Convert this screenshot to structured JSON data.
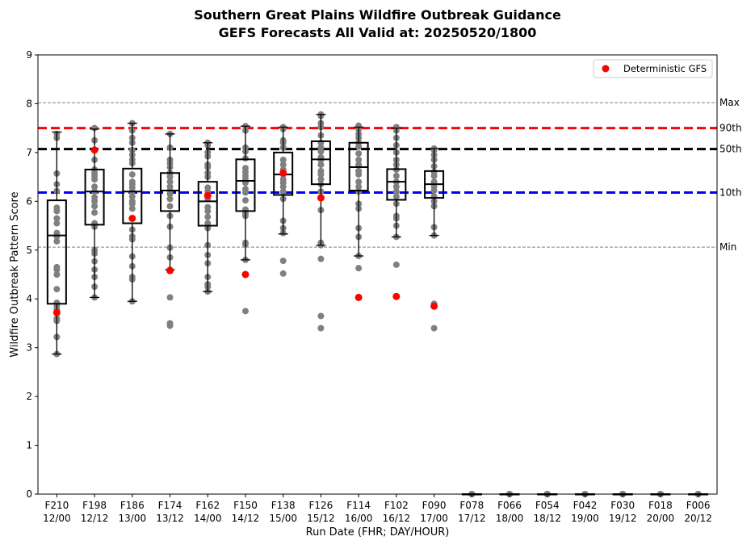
{
  "chart_data": {
    "type": "box",
    "title": "Southern Great Plains Wildfire Outbreak Guidance",
    "subtitle": "GEFS Forecasts All Valid at: 20250520/1800",
    "xlabel": "Run Date (FHR; DAY/HOUR)",
    "ylabel": "Wildfire Outbreak Pattern Score",
    "ylim": [
      0,
      9
    ],
    "yticks": [
      0,
      1,
      2,
      3,
      4,
      5,
      6,
      7,
      8,
      9
    ],
    "grid": false,
    "legend": {
      "position": "top-right",
      "entries": [
        "Deterministic GFS"
      ]
    },
    "categories": [
      {
        "fhr": "F210",
        "date": "12/00"
      },
      {
        "fhr": "F198",
        "date": "12/12"
      },
      {
        "fhr": "F186",
        "date": "13/00"
      },
      {
        "fhr": "F174",
        "date": "13/12"
      },
      {
        "fhr": "F162",
        "date": "14/00"
      },
      {
        "fhr": "F150",
        "date": "14/12"
      },
      {
        "fhr": "F138",
        "date": "15/00"
      },
      {
        "fhr": "F126",
        "date": "15/12"
      },
      {
        "fhr": "F114",
        "date": "16/00"
      },
      {
        "fhr": "F102",
        "date": "16/12"
      },
      {
        "fhr": "F090",
        "date": "17/00"
      },
      {
        "fhr": "F078",
        "date": "17/12"
      },
      {
        "fhr": "F066",
        "date": "18/00"
      },
      {
        "fhr": "F054",
        "date": "18/12"
      },
      {
        "fhr": "F042",
        "date": "19/00"
      },
      {
        "fhr": "F030",
        "date": "19/12"
      },
      {
        "fhr": "F018",
        "date": "20/00"
      },
      {
        "fhr": "F006",
        "date": "20/12"
      }
    ],
    "boxes": [
      {
        "whislo": 2.87,
        "q1": 3.9,
        "med": 5.3,
        "q3": 6.02,
        "whishi": 7.42
      },
      {
        "whislo": 4.03,
        "q1": 5.52,
        "med": 6.2,
        "q3": 6.65,
        "whishi": 7.48
      },
      {
        "whislo": 3.95,
        "q1": 5.55,
        "med": 6.2,
        "q3": 6.67,
        "whishi": 7.6
      },
      {
        "whislo": 4.6,
        "q1": 5.8,
        "med": 6.22,
        "q3": 6.58,
        "whishi": 7.38
      },
      {
        "whislo": 4.15,
        "q1": 5.5,
        "med": 6.0,
        "q3": 6.4,
        "whishi": 7.2
      },
      {
        "whislo": 4.8,
        "q1": 5.8,
        "med": 6.42,
        "q3": 6.86,
        "whishi": 7.54
      },
      {
        "whislo": 5.33,
        "q1": 6.13,
        "med": 6.55,
        "q3": 7.0,
        "whishi": 7.52
      },
      {
        "whislo": 5.1,
        "q1": 6.35,
        "med": 6.86,
        "q3": 7.23,
        "whishi": 7.78
      },
      {
        "whislo": 4.88,
        "q1": 6.22,
        "med": 6.7,
        "q3": 7.2,
        "whishi": 7.52
      },
      {
        "whislo": 5.27,
        "q1": 6.03,
        "med": 6.4,
        "q3": 6.66,
        "whishi": 7.5
      },
      {
        "whislo": 5.3,
        "q1": 6.07,
        "med": 6.35,
        "q3": 6.62,
        "whishi": 7.08
      },
      {
        "whislo": 0,
        "q1": 0,
        "med": 0,
        "q3": 0,
        "whishi": 0
      },
      {
        "whislo": 0,
        "q1": 0,
        "med": 0,
        "q3": 0,
        "whishi": 0
      },
      {
        "whislo": 0,
        "q1": 0,
        "med": 0,
        "q3": 0,
        "whishi": 0
      },
      {
        "whislo": 0,
        "q1": 0,
        "med": 0,
        "q3": 0,
        "whishi": 0
      },
      {
        "whislo": 0,
        "q1": 0,
        "med": 0,
        "q3": 0,
        "whishi": 0
      },
      {
        "whislo": 0,
        "q1": 0,
        "med": 0,
        "q3": 0,
        "whishi": 0
      },
      {
        "whislo": 0,
        "q1": 0,
        "med": 0,
        "q3": 0,
        "whishi": 0
      }
    ],
    "members": [
      [
        7.38,
        7.3,
        6.57,
        6.35,
        6.21,
        5.87,
        5.8,
        5.65,
        5.55,
        5.35,
        5.28,
        5.18,
        4.65,
        4.6,
        4.5,
        4.2,
        3.92,
        3.85,
        3.78,
        3.6,
        3.55,
        3.22,
        2.87
      ],
      [
        7.5,
        7.25,
        7.05,
        6.85,
        6.65,
        6.58,
        6.52,
        6.45,
        6.3,
        6.2,
        6.08,
        6.0,
        5.9,
        5.77,
        5.55,
        5.48,
        5.0,
        4.93,
        4.77,
        4.6,
        4.45,
        4.25,
        4.03
      ],
      [
        7.6,
        7.45,
        7.3,
        7.2,
        7.05,
        6.95,
        6.85,
        6.78,
        6.55,
        6.4,
        6.35,
        6.28,
        6.2,
        6.1,
        6.0,
        5.95,
        5.85,
        5.65,
        5.42,
        5.28,
        5.22,
        4.87,
        4.67,
        4.45,
        4.4,
        3.95
      ],
      [
        7.38,
        7.1,
        6.85,
        6.78,
        6.7,
        6.58,
        6.5,
        6.4,
        6.3,
        6.22,
        6.15,
        6.05,
        5.9,
        5.7,
        5.48,
        5.05,
        4.85,
        4.6,
        4.03,
        3.5,
        3.45
      ],
      [
        7.2,
        7.15,
        7.0,
        6.92,
        6.75,
        6.7,
        6.58,
        6.5,
        6.28,
        6.2,
        6.05,
        5.88,
        5.8,
        5.68,
        5.55,
        5.45,
        5.1,
        4.9,
        4.73,
        4.45,
        4.3,
        4.25,
        4.15
      ],
      [
        7.54,
        7.45,
        7.1,
        7.02,
        6.88,
        6.68,
        6.6,
        6.52,
        6.45,
        6.38,
        6.25,
        6.18,
        6.02,
        5.83,
        5.75,
        5.7,
        5.15,
        5.12,
        4.8,
        3.75
      ],
      [
        7.52,
        7.48,
        7.25,
        7.2,
        7.1,
        6.85,
        6.75,
        6.65,
        6.55,
        6.45,
        6.38,
        6.3,
        6.2,
        6.05,
        5.6,
        5.45,
        5.35,
        4.78,
        4.52
      ],
      [
        7.78,
        7.75,
        7.6,
        7.52,
        7.35,
        7.2,
        7.1,
        7.02,
        6.9,
        6.85,
        6.75,
        6.62,
        6.55,
        6.45,
        6.35,
        6.2,
        5.82,
        5.15,
        5.1,
        4.82,
        3.65,
        3.4
      ],
      [
        7.55,
        7.48,
        7.38,
        7.3,
        7.2,
        7.12,
        6.98,
        6.85,
        6.75,
        6.62,
        6.55,
        6.4,
        6.3,
        6.2,
        5.95,
        5.85,
        5.45,
        5.27,
        4.88,
        4.63
      ],
      [
        7.52,
        7.45,
        7.3,
        7.15,
        7.0,
        6.85,
        6.75,
        6.65,
        6.52,
        6.4,
        6.3,
        6.2,
        6.1,
        5.95,
        5.7,
        5.65,
        5.5,
        5.27,
        4.7
      ],
      [
        7.08,
        7.05,
        6.95,
        6.85,
        6.72,
        6.6,
        6.52,
        6.4,
        6.3,
        6.22,
        6.1,
        6.0,
        5.9,
        5.47,
        5.3,
        3.9,
        3.4
      ],
      [
        0,
        0,
        0,
        0,
        0,
        0
      ],
      [
        0,
        0,
        0,
        0,
        0,
        0
      ],
      [
        0,
        0,
        0,
        0,
        0,
        0
      ],
      [
        0,
        0,
        0,
        0,
        0,
        0
      ],
      [
        0,
        0,
        0,
        0,
        0,
        0
      ],
      [
        0,
        0,
        0,
        0,
        0,
        0
      ],
      [
        0,
        0,
        0,
        0,
        0,
        0
      ]
    ],
    "deterministic": {
      "name": "Deterministic GFS",
      "color": "#ff0000",
      "values": [
        3.72,
        7.05,
        5.65,
        4.58,
        6.12,
        4.5,
        6.58,
        6.07,
        4.03,
        4.05,
        3.85,
        null,
        null,
        null,
        null,
        null,
        null,
        null
      ]
    },
    "reference_lines": [
      {
        "label": "Max",
        "value": 8.02,
        "color": "#808080",
        "style": "dashed-thin"
      },
      {
        "label": "90th",
        "value": 7.5,
        "color": "#ff0000",
        "style": "dashed-thick"
      },
      {
        "label": "50th",
        "value": 7.07,
        "color": "#000000",
        "style": "dashed-thick"
      },
      {
        "label": "10th",
        "value": 6.18,
        "color": "#0000ff",
        "style": "dashed-thick"
      },
      {
        "label": "Min",
        "value": 5.06,
        "color": "#808080",
        "style": "dashed-thin"
      }
    ],
    "member_color": "#808080"
  }
}
